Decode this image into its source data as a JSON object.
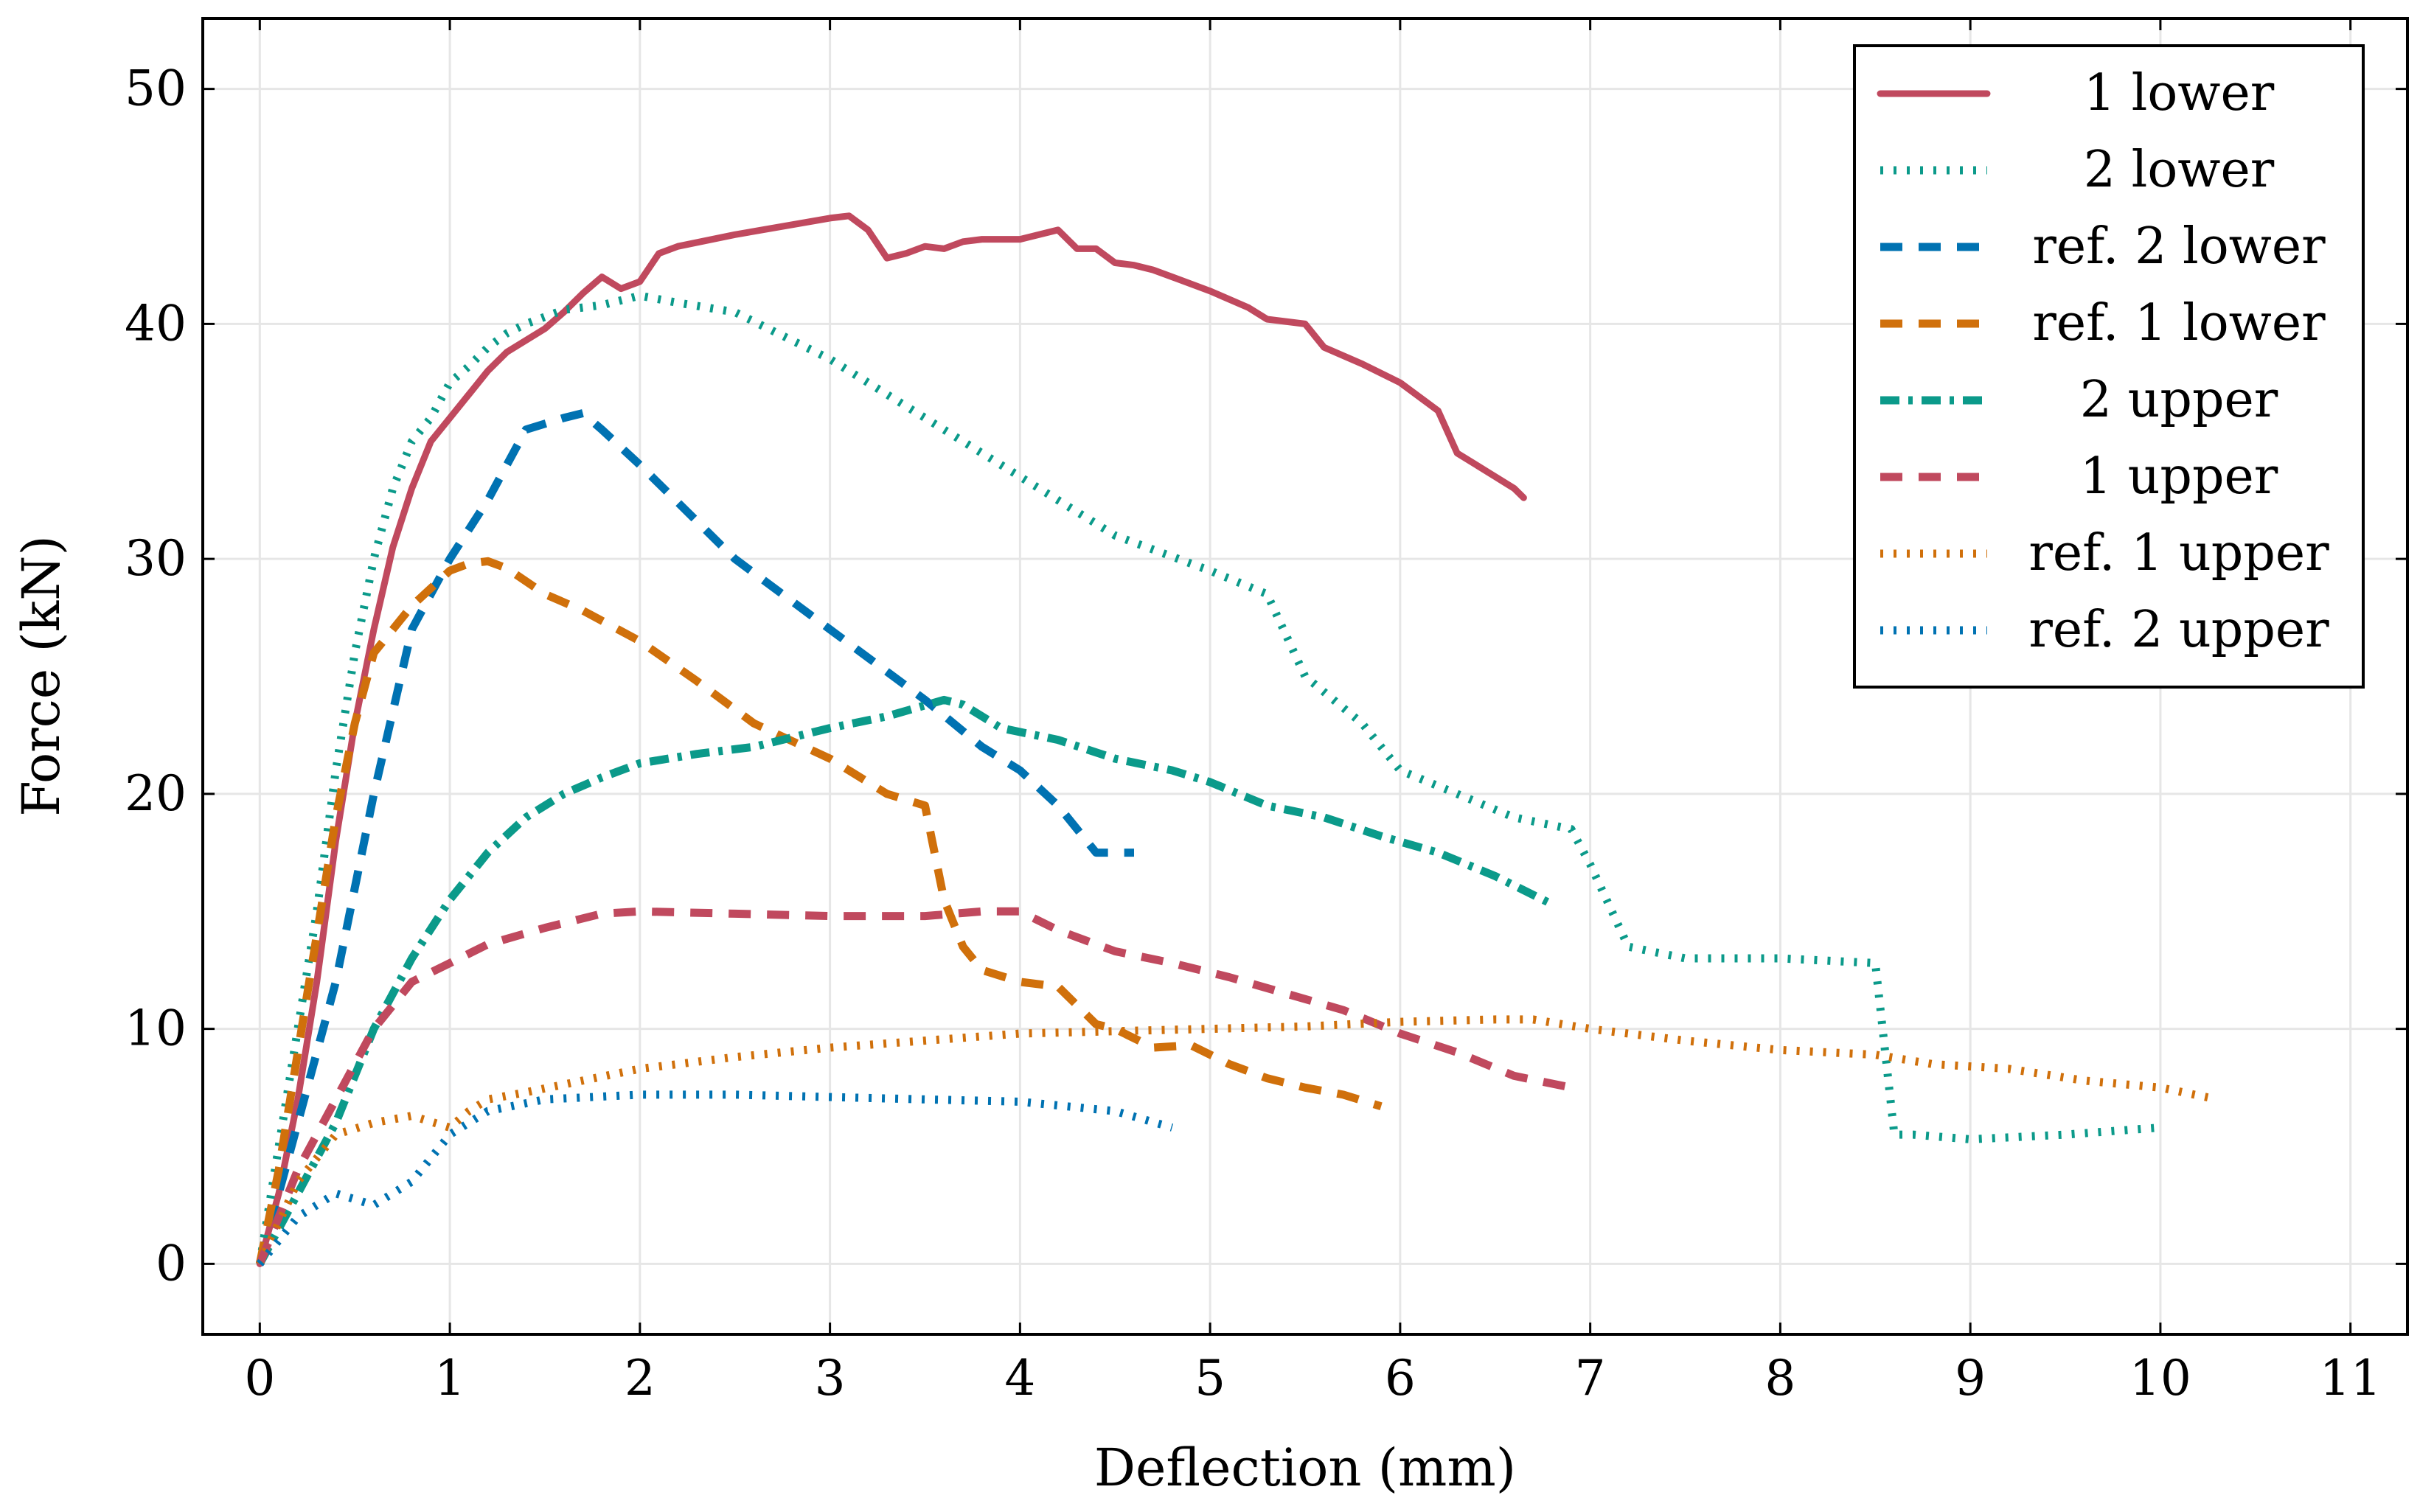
{
  "chart_data": {
    "type": "line",
    "title": "",
    "xlabel": "Deflection (mm)",
    "ylabel": "Force (kN)",
    "xlim": [
      -0.3,
      11.3
    ],
    "ylim": [
      -3,
      53
    ],
    "xticks": [
      0,
      1,
      2,
      3,
      4,
      5,
      6,
      7,
      8,
      9,
      10,
      11
    ],
    "yticks": [
      0,
      10,
      20,
      30,
      40,
      50
    ],
    "grid": true,
    "legend_position": "top-right",
    "series": [
      {
        "name": "1 lower",
        "color": "#c0495e",
        "style": "solid",
        "x": [
          0,
          0.1,
          0.2,
          0.3,
          0.4,
          0.5,
          0.6,
          0.7,
          0.8,
          0.9,
          1.0,
          1.1,
          1.2,
          1.3,
          1.4,
          1.5,
          1.6,
          1.7,
          1.8,
          1.9,
          2.0,
          2.1,
          2.2,
          2.5,
          3.0,
          3.1,
          3.2,
          3.3,
          3.4,
          3.5,
          3.6,
          3.7,
          3.8,
          3.9,
          4.0,
          4.1,
          4.2,
          4.3,
          4.4,
          4.5,
          4.6,
          4.7,
          4.8,
          5.0,
          5.2,
          5.3,
          5.5,
          5.6,
          5.8,
          6.0,
          6.2,
          6.3,
          6.4,
          6.5,
          6.6,
          6.65
        ],
        "y": [
          0,
          3,
          7,
          12,
          18,
          23,
          27,
          30.5,
          33,
          35,
          36,
          37,
          38,
          38.8,
          39.3,
          39.8,
          40.5,
          41.3,
          42,
          41.5,
          41.8,
          43,
          43.3,
          43.8,
          44.5,
          44.6,
          44,
          42.8,
          43,
          43.3,
          43.2,
          43.5,
          43.6,
          43.6,
          43.6,
          43.8,
          44,
          43.2,
          43.2,
          42.6,
          42.5,
          42.3,
          42,
          41.4,
          40.7,
          40.2,
          40,
          39,
          38.3,
          37.5,
          36.3,
          34.5,
          34,
          33.5,
          33,
          32.6
        ]
      },
      {
        "name": "2 lower",
        "color": "#0b9a8a",
        "style": "dotted",
        "x": [
          0,
          0.1,
          0.2,
          0.3,
          0.4,
          0.5,
          0.6,
          0.7,
          0.8,
          0.9,
          1.0,
          1.1,
          1.2,
          1.3,
          1.4,
          1.5,
          1.6,
          1.8,
          2.0,
          2.2,
          2.5,
          3.0,
          3.5,
          4.0,
          4.5,
          5.0,
          5.3,
          5.5,
          5.8,
          6.0,
          6.3,
          6.6,
          6.9,
          7.0,
          7.2,
          7.5,
          8.0,
          8.5,
          8.6,
          8.7,
          9.0,
          9.5,
          10.0
        ],
        "y": [
          0,
          5,
          10,
          15,
          21,
          26,
          30,
          33,
          35,
          36,
          37.5,
          38.2,
          39,
          39.6,
          40,
          40.3,
          40.6,
          40.8,
          41.2,
          40.9,
          40.5,
          38.5,
          36,
          33.5,
          31,
          29.5,
          28.5,
          25,
          23,
          21,
          20,
          19,
          18.5,
          17,
          13.5,
          13,
          13,
          12.8,
          5.5,
          5.5,
          5.3,
          5.5,
          5.8
        ]
      },
      {
        "name": "ref. 2 lower",
        "color": "#0072b2",
        "style": "dashed",
        "x": [
          0,
          0.2,
          0.4,
          0.6,
          0.8,
          1.0,
          1.2,
          1.4,
          1.6,
          1.7,
          1.8,
          2.0,
          2.5,
          3.0,
          3.5,
          3.8,
          4.0,
          4.2,
          4.4,
          4.6
        ],
        "y": [
          0,
          6,
          12,
          20,
          27,
          30,
          32.5,
          35.5,
          36,
          36.2,
          35.5,
          34,
          30,
          27,
          24,
          22,
          21,
          19.5,
          17.5,
          17.5
        ]
      },
      {
        "name": "ref. 1 lower",
        "color": "#d0700b",
        "style": "dashed",
        "x": [
          0,
          0.1,
          0.2,
          0.3,
          0.4,
          0.5,
          0.6,
          0.8,
          1.0,
          1.1,
          1.2,
          1.3,
          1.5,
          1.7,
          2.0,
          2.3,
          2.6,
          3.0,
          3.3,
          3.5,
          3.6,
          3.7,
          3.8,
          4.0,
          4.2,
          4.4,
          4.5,
          4.7,
          4.9,
          5.1,
          5.3,
          5.5,
          5.7,
          5.9
        ],
        "y": [
          0,
          4,
          9,
          14,
          19,
          23,
          26,
          28,
          29.5,
          29.8,
          29.9,
          29.6,
          28.5,
          27.8,
          26.5,
          24.8,
          23,
          21.5,
          20,
          19.5,
          15.5,
          13.5,
          12.5,
          12,
          11.8,
          10.2,
          10,
          9.2,
          9.3,
          8.5,
          7.9,
          7.5,
          7.2,
          6.7
        ]
      },
      {
        "name": "2 upper",
        "color": "#0b9a8a",
        "style": "dashdot",
        "x": [
          0,
          0.2,
          0.4,
          0.6,
          0.8,
          1.0,
          1.2,
          1.4,
          1.6,
          1.8,
          2.0,
          2.3,
          2.6,
          3.0,
          3.3,
          3.6,
          3.7,
          3.9,
          4.2,
          4.5,
          4.8,
          5.0,
          5.3,
          5.6,
          5.9,
          6.2,
          6.5,
          6.8
        ],
        "y": [
          0,
          3,
          6,
          10,
          13,
          15.5,
          17.5,
          19,
          20,
          20.7,
          21.3,
          21.7,
          22,
          22.8,
          23.3,
          24,
          23.8,
          22.8,
          22.3,
          21.5,
          21,
          20.5,
          19.5,
          19,
          18.2,
          17.5,
          16.5,
          15.3
        ]
      },
      {
        "name": "1 upper",
        "color": "#c0495e",
        "style": "dashed",
        "x": [
          0,
          0.2,
          0.4,
          0.6,
          0.8,
          1.0,
          1.2,
          1.5,
          1.8,
          2.0,
          2.5,
          3.0,
          3.5,
          3.8,
          4.0,
          4.2,
          4.5,
          4.8,
          5.1,
          5.4,
          5.7,
          6.0,
          6.3,
          6.6,
          6.9
        ],
        "y": [
          0,
          4,
          7,
          10,
          12,
          12.8,
          13.6,
          14.3,
          14.9,
          15,
          14.9,
          14.8,
          14.8,
          15,
          15,
          14.2,
          13.3,
          12.8,
          12.2,
          11.5,
          10.8,
          9.8,
          9,
          8,
          7.5
        ]
      },
      {
        "name": "ref. 1 upper",
        "color": "#d0700b",
        "style": "dotted",
        "x": [
          0,
          0.2,
          0.4,
          0.6,
          0.8,
          1.0,
          1.1,
          1.2,
          1.4,
          1.7,
          2.0,
          2.5,
          3.0,
          3.5,
          4.0,
          4.5,
          5.0,
          5.5,
          6.0,
          6.5,
          6.7,
          7.0,
          7.5,
          8.0,
          8.5,
          8.8,
          9.2,
          9.6,
          10.0,
          10.3
        ],
        "y": [
          0,
          3.5,
          5.5,
          6,
          6.3,
          5.8,
          6.5,
          7,
          7.3,
          7.8,
          8.3,
          8.8,
          9.2,
          9.5,
          9.8,
          9.9,
          10,
          10.1,
          10.3,
          10.4,
          10.4,
          10,
          9.5,
          9.1,
          8.9,
          8.5,
          8.3,
          7.8,
          7.5,
          7
        ]
      },
      {
        "name": "ref. 2 upper",
        "color": "#0072b2",
        "style": "dotted",
        "x": [
          0,
          0.2,
          0.4,
          0.6,
          0.8,
          1.0,
          1.2,
          1.5,
          2.0,
          2.5,
          3.0,
          3.5,
          4.0,
          4.5,
          4.8
        ],
        "y": [
          0,
          2,
          3,
          2.5,
          3.5,
          5.5,
          6.5,
          7,
          7.2,
          7.2,
          7.1,
          7,
          6.9,
          6.5,
          5.8
        ]
      }
    ]
  }
}
